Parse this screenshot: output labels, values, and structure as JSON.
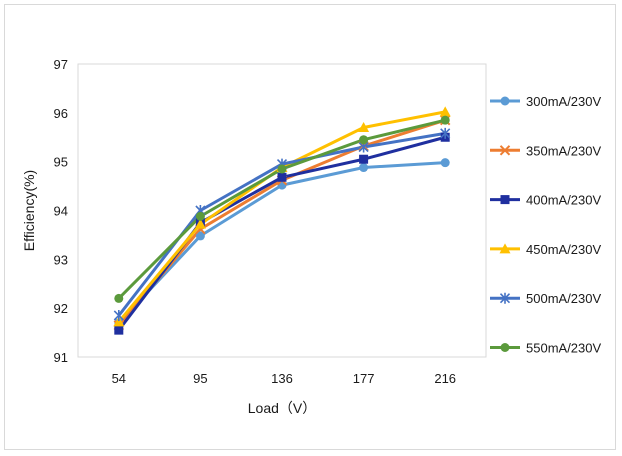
{
  "chart_data": {
    "type": "line",
    "title": "",
    "xlabel": "Load（V）",
    "ylabel": "Efficiency(%)",
    "categories": [
      "54",
      "95",
      "136",
      "177",
      "216"
    ],
    "ylim": [
      91,
      97
    ],
    "yticks": [
      "91",
      "92",
      "93",
      "94",
      "95",
      "96",
      "97"
    ],
    "grid": false,
    "legend_position": "right",
    "series": [
      {
        "name": "300mA/230V",
        "color": "#5b9bd5",
        "marker": "circle",
        "values": [
          91.7,
          93.48,
          94.52,
          94.88,
          94.98
        ]
      },
      {
        "name": "350mA/230V",
        "color": "#ed7d31",
        "marker": "x",
        "values": [
          91.65,
          93.62,
          94.62,
          95.32,
          95.85
        ]
      },
      {
        "name": "400mA/230V",
        "color": "#1f2f9f",
        "marker": "square",
        "values": [
          91.55,
          93.75,
          94.68,
          95.05,
          95.5
        ]
      },
      {
        "name": "450mA/230V",
        "color": "#ffc000",
        "marker": "triangle",
        "values": [
          91.72,
          93.72,
          94.88,
          95.7,
          96.02
        ]
      },
      {
        "name": "500mA/230V",
        "color": "#4472c4",
        "marker": "star",
        "values": [
          91.85,
          94.0,
          94.95,
          95.3,
          95.58
        ]
      },
      {
        "name": "550mA/230V",
        "color": "#5b9a3c",
        "marker": "circle",
        "values": [
          92.2,
          93.88,
          94.85,
          95.45,
          95.85
        ]
      }
    ]
  }
}
